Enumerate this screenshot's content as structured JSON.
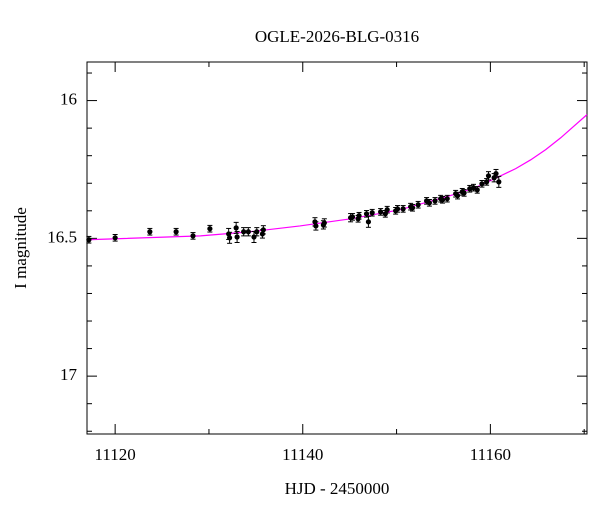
{
  "chart_data": {
    "type": "scatter",
    "title": "OGLE-2026-BLG-0316",
    "x_label": "HJD - 2450000",
    "y_label": "I magnitude",
    "xlim": [
      11117.0,
      11170.3
    ],
    "ylim": [
      15.86,
      17.21
    ],
    "y_inverted": true,
    "xticks": [
      11120,
      11140,
      11160
    ],
    "xminorticks": [
      11130,
      11150,
      11170
    ],
    "yticks": [
      16,
      16.5,
      17
    ],
    "yminorticks": [
      15.9,
      16.1,
      16.2,
      16.3,
      16.4,
      16.6,
      16.7,
      16.8,
      16.9,
      17.1,
      17.2
    ],
    "series": [
      {
        "type": "errorbar",
        "color": "#000000",
        "x": [
          11117.2,
          11120.0,
          11123.7,
          11126.5,
          11128.3,
          11130.1,
          11132.1,
          11132.2,
          11132.9,
          11133.0,
          11133.7,
          11134.2,
          11134.8,
          11135.1,
          11135.7,
          11135.8,
          11141.3,
          11141.4,
          11142.2,
          11142.3,
          11145.1,
          11145.3,
          11145.9,
          11146.0,
          11146.8,
          11147.0,
          11147.4,
          11148.3,
          11148.8,
          11149.0,
          11149.9,
          11150.1,
          11150.7,
          11151.5,
          11151.7,
          11152.3,
          11153.2,
          11153.5,
          11154.1,
          11154.7,
          11154.9,
          11155.4,
          11156.3,
          11156.5,
          11157.0,
          11157.2,
          11157.8,
          11158.2,
          11158.6,
          11159.1,
          11159.6,
          11159.8,
          11160.4,
          11160.6,
          11160.9
        ],
        "values": [
          16.505,
          16.498,
          16.476,
          16.476,
          16.491,
          16.465,
          16.484,
          16.498,
          16.462,
          16.495,
          16.476,
          16.476,
          16.495,
          16.476,
          16.484,
          16.469,
          16.44,
          16.455,
          16.451,
          16.444,
          16.425,
          16.422,
          16.429,
          16.418,
          16.411,
          16.44,
          16.407,
          16.404,
          16.411,
          16.396,
          16.4,
          16.393,
          16.393,
          16.385,
          16.389,
          16.378,
          16.364,
          16.371,
          16.364,
          16.356,
          16.36,
          16.356,
          16.338,
          16.345,
          16.331,
          16.335,
          16.32,
          16.316,
          16.324,
          16.302,
          16.295,
          16.273,
          16.28,
          16.265,
          16.295
        ],
        "errors": [
          0.012,
          0.012,
          0.012,
          0.012,
          0.012,
          0.012,
          0.02,
          0.02,
          0.02,
          0.02,
          0.015,
          0.015,
          0.02,
          0.015,
          0.015,
          0.015,
          0.015,
          0.015,
          0.015,
          0.015,
          0.015,
          0.012,
          0.012,
          0.012,
          0.012,
          0.02,
          0.012,
          0.012,
          0.012,
          0.012,
          0.012,
          0.012,
          0.012,
          0.012,
          0.012,
          0.012,
          0.012,
          0.012,
          0.012,
          0.012,
          0.012,
          0.012,
          0.012,
          0.012,
          0.012,
          0.012,
          0.012,
          0.012,
          0.012,
          0.012,
          0.012,
          0.015,
          0.015,
          0.015,
          0.02
        ]
      },
      {
        "type": "line",
        "color": "#ff00ff",
        "x": [
          11117.0,
          11129.1,
          11134.4,
          11139.7,
          11145.1,
          11150.4,
          11155.7,
          11158.4,
          11161.1,
          11162.7,
          11164.3,
          11165.9,
          11167.5,
          11170.3
        ],
        "values": [
          16.505,
          16.491,
          16.476,
          16.455,
          16.429,
          16.396,
          16.345,
          16.316,
          16.273,
          16.247,
          16.215,
          16.178,
          16.135,
          16.051
        ]
      }
    ]
  }
}
